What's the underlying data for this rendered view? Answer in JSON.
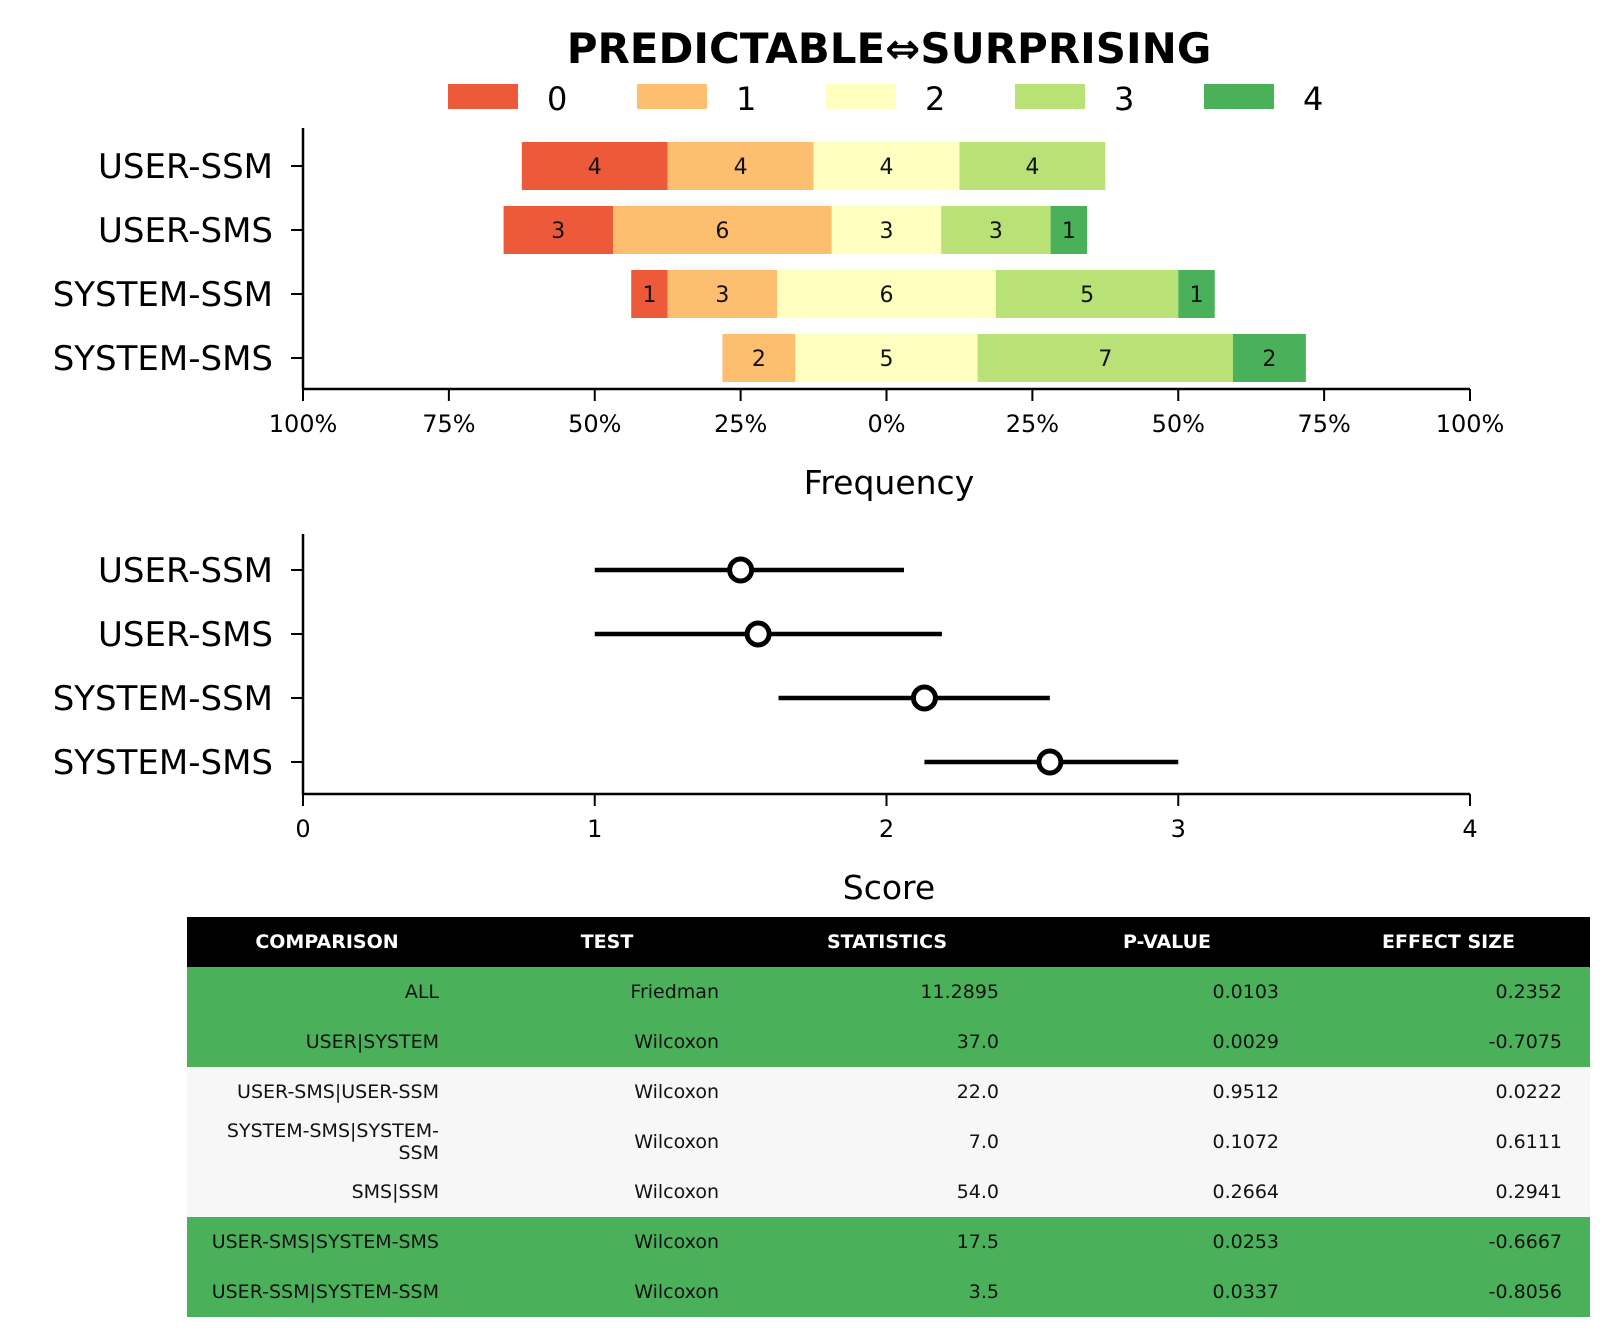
{
  "chart_data": [
    {
      "type": "bar",
      "orientation": "horizontal",
      "stacked": "diverging",
      "title": "PREDICTABLE⇔SURPRISING",
      "xlabel": "Frequency",
      "ylabel": "",
      "xlim": [
        -100,
        100
      ],
      "x_ticks": [
        "100%",
        "75%",
        "50%",
        "25%",
        "0%",
        "25%",
        "50%",
        "75%",
        "100%"
      ],
      "legend_position": "top",
      "categories": [
        "USER-SSM",
        "USER-SMS",
        "SYSTEM-SSM",
        "SYSTEM-SMS"
      ],
      "series": [
        {
          "name": "0",
          "color": "#ec5a3a",
          "values": [
            4,
            3,
            1,
            0
          ]
        },
        {
          "name": "1",
          "color": "#fdbf6f",
          "values": [
            4,
            6,
            3,
            2
          ]
        },
        {
          "name": "2",
          "color": "#ffffbf",
          "values": [
            4,
            3,
            6,
            5
          ]
        },
        {
          "name": "3",
          "color": "#b8e176",
          "values": [
            4,
            3,
            5,
            7
          ]
        },
        {
          "name": "4",
          "color": "#4bb05a",
          "values": [
            0,
            1,
            1,
            2
          ]
        }
      ]
    },
    {
      "type": "scatter",
      "subtype": "point-with-interval",
      "xlabel": "Score",
      "ylabel": "",
      "xlim": [
        0,
        4
      ],
      "x_ticks": [
        "0",
        "1",
        "2",
        "3",
        "4"
      ],
      "categories": [
        "USER-SSM",
        "USER-SMS",
        "SYSTEM-SSM",
        "SYSTEM-SMS"
      ],
      "points": [
        {
          "label": "USER-SSM",
          "value": 1.5,
          "low": 1.0,
          "high": 2.06
        },
        {
          "label": "USER-SMS",
          "value": 1.56,
          "low": 1.0,
          "high": 2.19
        },
        {
          "label": "SYSTEM-SSM",
          "value": 2.13,
          "low": 1.63,
          "high": 2.56
        },
        {
          "label": "SYSTEM-SMS",
          "value": 2.56,
          "low": 2.13,
          "high": 3.0
        }
      ]
    },
    {
      "type": "table",
      "highlight_color": "#4bb05a",
      "columns": [
        "COMPARISON",
        "TEST",
        "STATISTICS",
        "P-VALUE",
        "EFFECT SIZE"
      ],
      "rows": [
        {
          "cells": [
            "ALL",
            "Friedman",
            "11.2895",
            "0.0103",
            "0.2352"
          ],
          "highlight": true
        },
        {
          "cells": [
            "USER|SYSTEM",
            "Wilcoxon",
            "37.0",
            "0.0029",
            "-0.7075"
          ],
          "highlight": true
        },
        {
          "cells": [
            "USER-SMS|USER-SSM",
            "Wilcoxon",
            "22.0",
            "0.9512",
            "0.0222"
          ],
          "highlight": false
        },
        {
          "cells": [
            "SYSTEM-SMS|SYSTEM-SSM",
            "Wilcoxon",
            "7.0",
            "0.1072",
            "0.6111"
          ],
          "highlight": false
        },
        {
          "cells": [
            "SMS|SSM",
            "Wilcoxon",
            "54.0",
            "0.2664",
            "0.2941"
          ],
          "highlight": false
        },
        {
          "cells": [
            "USER-SMS|SYSTEM-SMS",
            "Wilcoxon",
            "17.5",
            "0.0253",
            "-0.6667"
          ],
          "highlight": true
        },
        {
          "cells": [
            "USER-SSM|SYSTEM-SSM",
            "Wilcoxon",
            "3.5",
            "0.0337",
            "-0.8056"
          ],
          "highlight": true
        }
      ]
    }
  ]
}
